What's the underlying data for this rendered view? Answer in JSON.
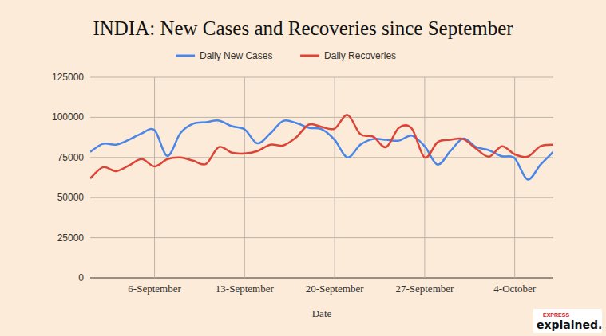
{
  "chart_data": {
    "type": "line",
    "title": "INDIA: New Cases and Recoveries since September",
    "x_label": "Date",
    "categories": [
      null,
      null,
      null,
      null,
      null,
      "6-September",
      null,
      null,
      null,
      null,
      null,
      null,
      "13-September",
      null,
      null,
      null,
      null,
      null,
      null,
      "20-September",
      null,
      null,
      null,
      null,
      null,
      null,
      "27-September",
      null,
      null,
      null,
      null,
      null,
      null,
      "4-October",
      null,
      null,
      null
    ],
    "series": [
      {
        "name": "Daily New Cases",
        "color": "#4a86e8",
        "values": [
          78500,
          83500,
          83000,
          86000,
          90000,
          92000,
          76000,
          90000,
          96000,
          97000,
          98000,
          94500,
          92500,
          83800,
          90000,
          97800,
          96500,
          93500,
          92600,
          86000,
          75000,
          83000,
          86500,
          86000,
          85500,
          88600,
          82000,
          70600,
          79000,
          86800,
          81500,
          79500,
          75800,
          74500,
          61300,
          70500,
          78500
        ]
      },
      {
        "name": "Daily Recoveries",
        "color": "#db4437",
        "values": [
          62000,
          69000,
          66500,
          70000,
          74000,
          69500,
          74000,
          75000,
          73000,
          71000,
          81500,
          78000,
          77500,
          79000,
          83000,
          82500,
          87500,
          95500,
          94000,
          93000,
          101500,
          89500,
          88000,
          81500,
          93500,
          93000,
          75000,
          84500,
          86000,
          86500,
          80500,
          75500,
          82000,
          77000,
          75500,
          82000,
          83000
        ]
      }
    ],
    "ylim": [
      0,
      125000
    ],
    "yticks": [
      0,
      25000,
      50000,
      75000,
      100000,
      125000
    ],
    "grid": true,
    "legend": "top",
    "brand": [
      "EXPRESS",
      "explained."
    ]
  }
}
